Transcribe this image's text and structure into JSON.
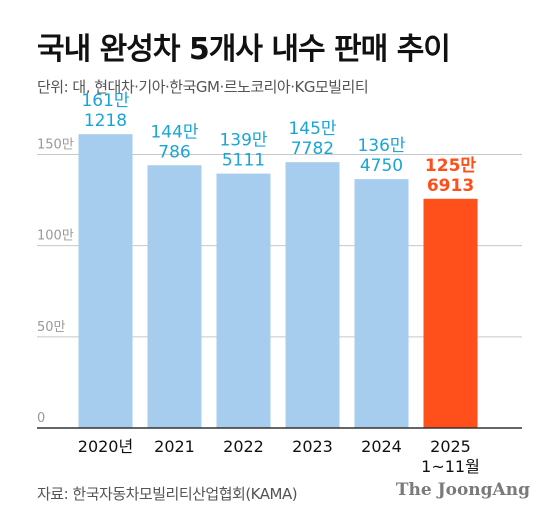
{
  "header": {
    "title": "국내 완성차 5개사 내수 판매 추이",
    "unit": "단위: 대, 현대차·기아·한국GM·르노코리아·KG모빌리티"
  },
  "footer": {
    "source": "자료: 한국자동차모빌리티산업협회(KAMA)",
    "brand": "The JoongAng"
  },
  "colors": {
    "bar_default": "#a6cdee",
    "bar_highlight": "#ff4f1a",
    "label_default": "#1aa5d8",
    "label_highlight": "#ff4f1a",
    "grid": "#c8c8c8",
    "axis": "#333333",
    "tick": "#999999"
  },
  "chart_data": {
    "type": "bar",
    "categories": [
      "2020년",
      "2021",
      "2022",
      "2023",
      "2024",
      "2025"
    ],
    "category_sublabels": [
      "",
      "",
      "",
      "",
      "",
      "1~11월"
    ],
    "values": [
      1611218,
      1440786,
      1395111,
      1457782,
      1364750,
      1256913
    ],
    "value_labels": [
      [
        "161만",
        "1218"
      ],
      [
        "144만",
        "786"
      ],
      [
        "139만",
        "5111"
      ],
      [
        "145만",
        "7782"
      ],
      [
        "136만",
        "4750"
      ],
      [
        "125만",
        "6913"
      ]
    ],
    "highlight_index": 5,
    "y_ticks": [
      0,
      500000,
      1000000,
      1500000
    ],
    "y_tick_labels": [
      "0",
      "50만",
      "100만",
      "150만"
    ],
    "ylim": [
      0,
      1700000
    ],
    "grid": true
  }
}
